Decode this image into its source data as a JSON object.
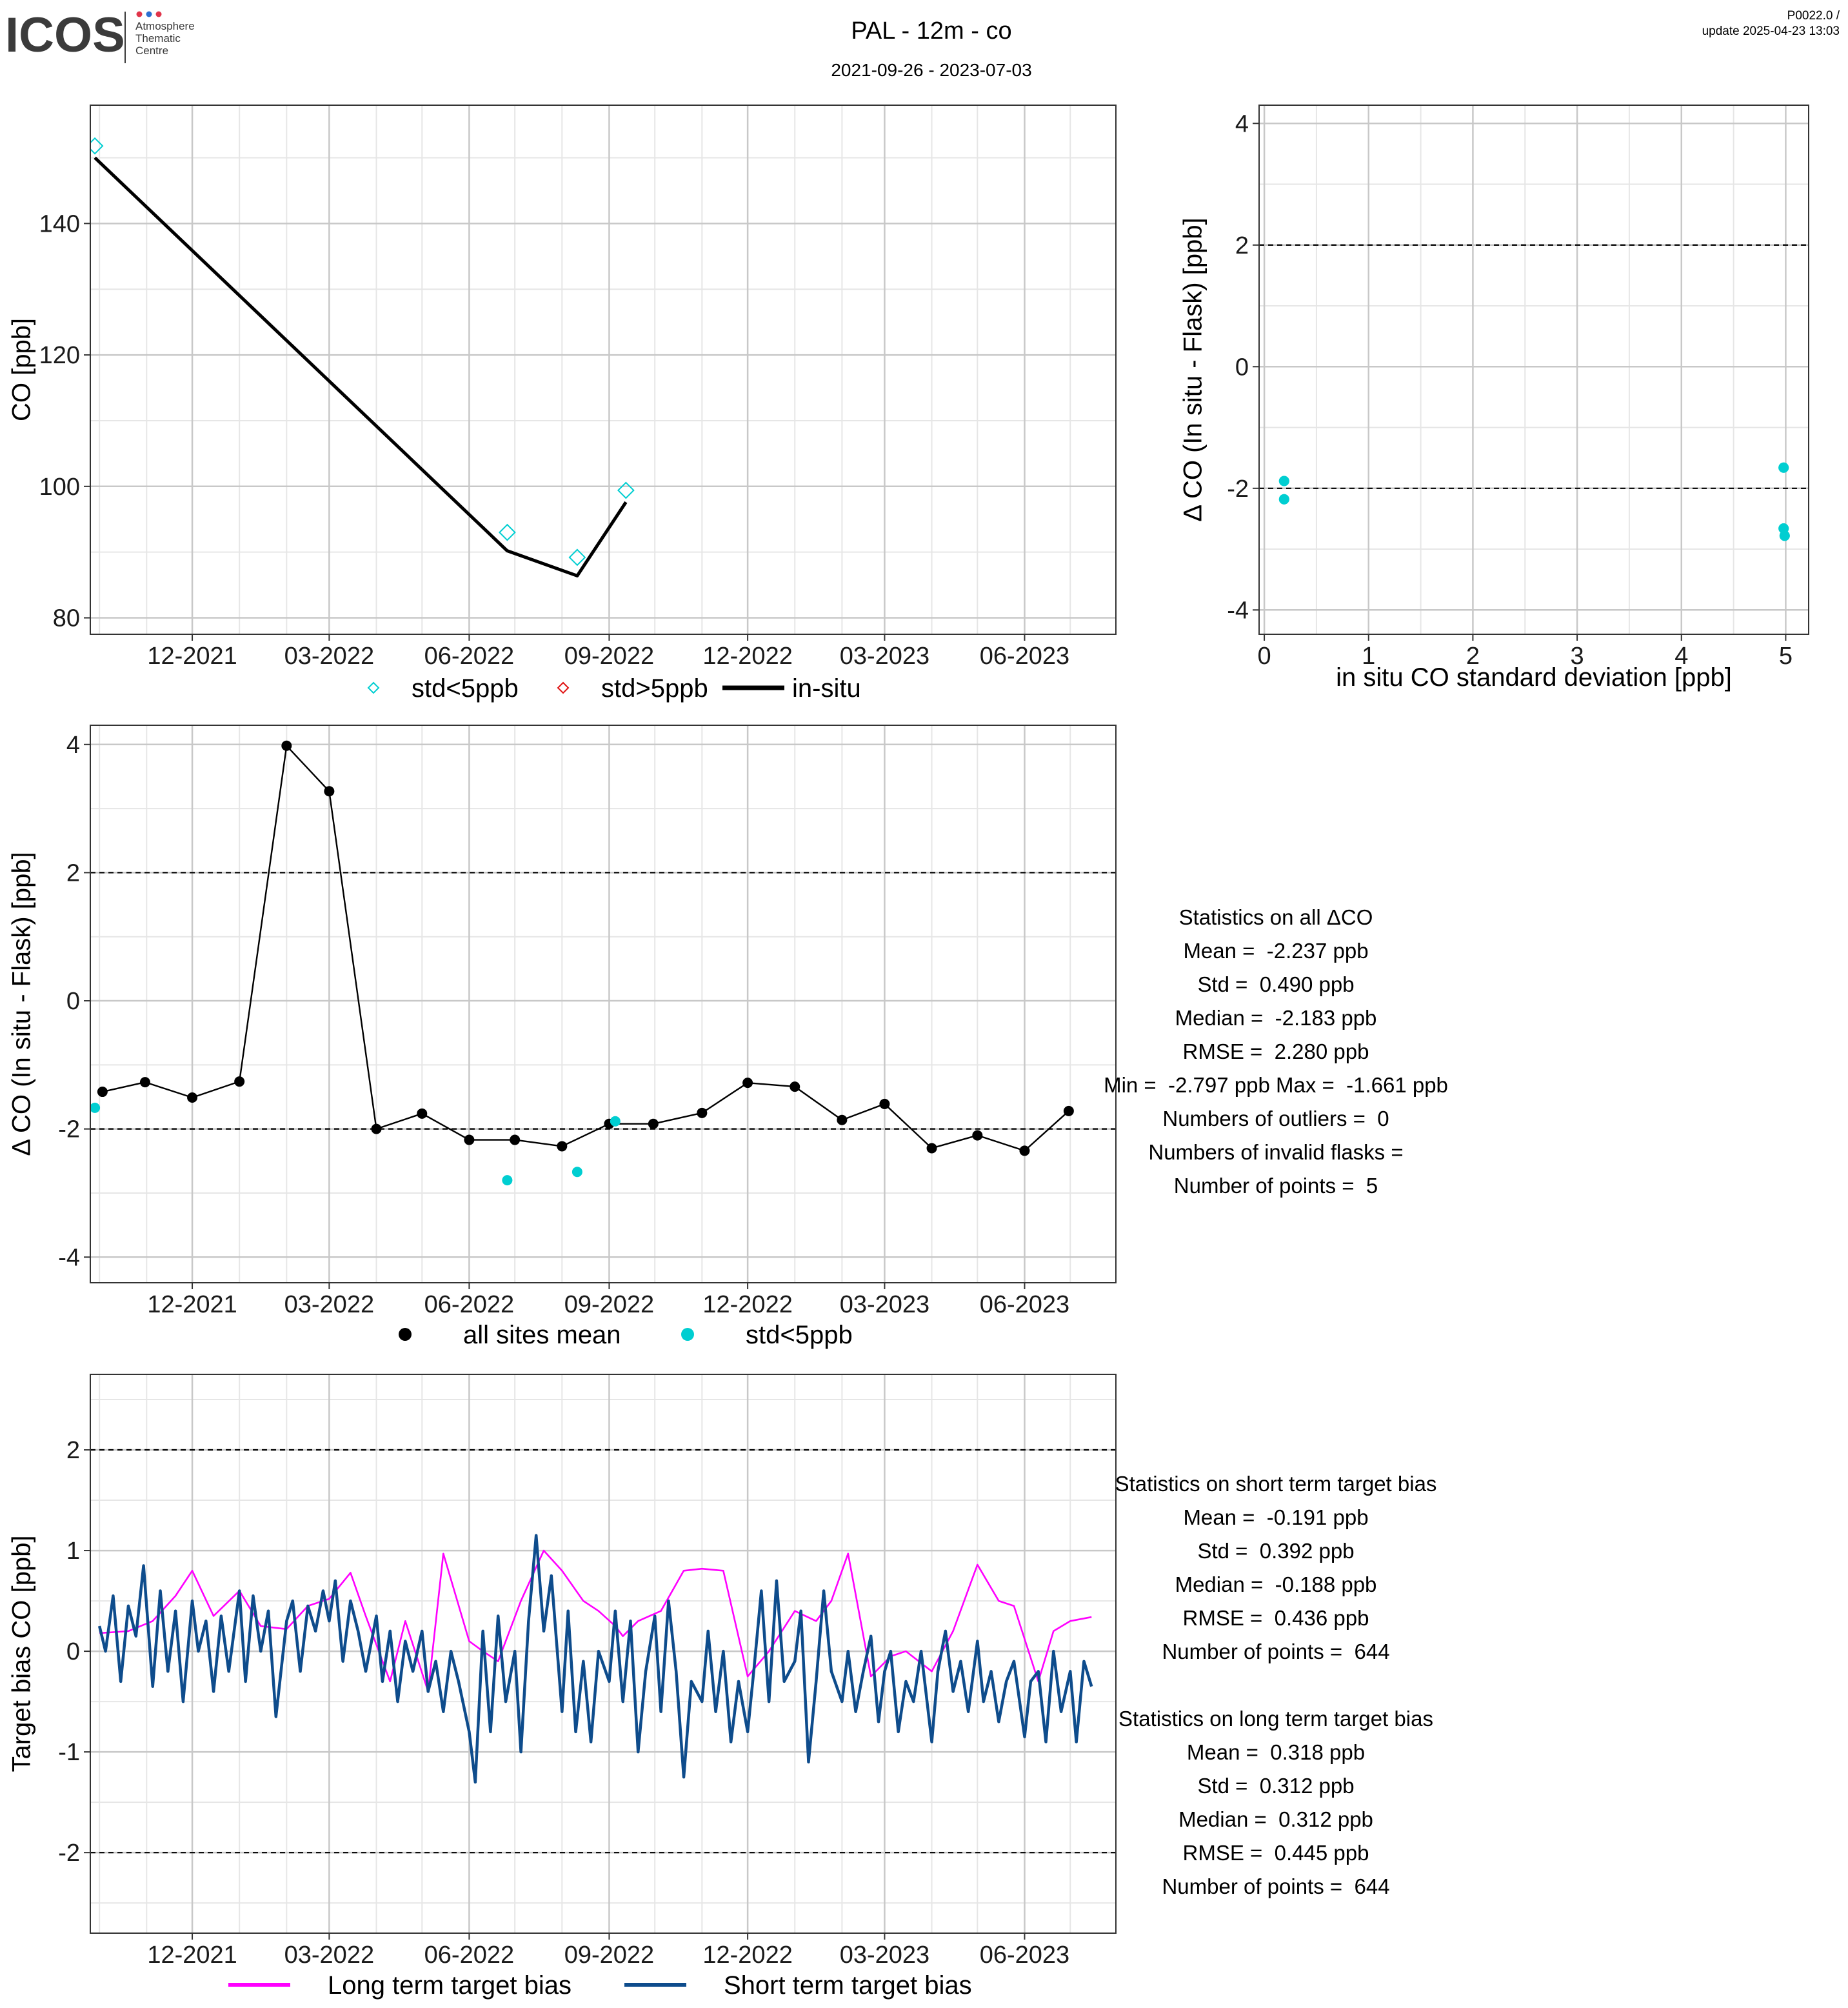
{
  "header": {
    "logo_text": "ICOS",
    "logo_subtext": [
      "Atmosphere",
      "Thematic",
      "Centre"
    ],
    "title": "PAL - 12m - co",
    "subtitle": "2021-09-26 - 2023-07-03",
    "version": "P0022.0 /",
    "update": "update  2025-04-23 13:03"
  },
  "colors": {
    "cyan": "#00CED1",
    "red": "#E01010",
    "black": "#000000",
    "magenta": "#FF00FF",
    "navy": "#0E4C8C",
    "grid": "#E6E6E6",
    "grid_major": "#C8C8C8"
  },
  "chart_data": [
    {
      "id": "co_timeseries",
      "type": "line",
      "xlabel": "",
      "ylabel": "CO [ppb]",
      "x_type": "date",
      "xlim": [
        "2021-09-25",
        "2023-07-31"
      ],
      "ylim": [
        77.5,
        158
      ],
      "yticks": [
        80,
        100,
        120,
        140
      ],
      "xticks": [
        "2021-12-01",
        "2022-03-01",
        "2022-06-01",
        "2022-09-01",
        "2022-12-01",
        "2023-03-01",
        "2023-06-01"
      ],
      "xtick_labels": [
        "12-2021",
        "03-2022",
        "06-2022",
        "09-2022",
        "12-2022",
        "03-2023",
        "06-2023"
      ],
      "grid": true,
      "legend_position": "bottom",
      "legend": [
        "std<5ppb",
        "std>5ppb",
        "in-situ"
      ],
      "series": [
        {
          "name": "std<5ppb",
          "kind": "diamond",
          "color": "#00CED1",
          "x": [
            "2021-09-28",
            "2022-06-26",
            "2022-08-11",
            "2022-09-12"
          ],
          "y": [
            151.8,
            93.0,
            89.2,
            99.4
          ]
        },
        {
          "name": "in-situ",
          "kind": "line",
          "color": "#000000",
          "x": [
            "2021-09-28",
            "2022-06-26",
            "2022-08-11",
            "2022-09-12"
          ],
          "y": [
            150.0,
            90.2,
            86.4,
            97.6
          ]
        }
      ]
    },
    {
      "id": "delta_vs_std",
      "type": "scatter",
      "xlabel": "in situ CO standard deviation [ppb]",
      "ylabel": "Δ CO (In situ - Flask) [ppb]",
      "xlim": [
        -0.05,
        5.22
      ],
      "ylim": [
        -4.4,
        4.3
      ],
      "xticks": [
        0,
        1,
        2,
        3,
        4,
        5
      ],
      "yticks": [
        -4,
        -2,
        0,
        2,
        4
      ],
      "hlines": [
        2,
        -2
      ],
      "grid": true,
      "series": [
        {
          "name": "",
          "color": "#00CED1",
          "x": [
            0.19,
            0.19,
            4.98,
            4.98,
            4.99
          ],
          "y": [
            -1.88,
            -2.18,
            -1.66,
            -2.66,
            -2.78
          ]
        }
      ]
    },
    {
      "id": "delta_timeseries",
      "type": "line",
      "xlabel": "",
      "ylabel": "Δ CO (In situ - Flask) [ppb]",
      "x_type": "date",
      "xlim": [
        "2021-09-25",
        "2023-07-31"
      ],
      "ylim": [
        -4.4,
        4.3
      ],
      "yticks": [
        -4,
        -2,
        0,
        2,
        4
      ],
      "xticks": [
        "2021-12-01",
        "2022-03-01",
        "2022-06-01",
        "2022-09-01",
        "2022-12-01",
        "2023-03-01",
        "2023-06-01"
      ],
      "xtick_labels": [
        "12-2021",
        "03-2022",
        "06-2022",
        "09-2022",
        "12-2022",
        "03-2023",
        "06-2023"
      ],
      "hlines": [
        2,
        -2
      ],
      "grid": true,
      "legend_position": "bottom",
      "legend": [
        "all sites mean",
        "std<5ppb"
      ],
      "series": [
        {
          "name": "all sites mean",
          "kind": "line_points",
          "color": "#000000",
          "x": [
            "2021-10-03",
            "2021-10-31",
            "2021-12-01",
            "2022-01-01",
            "2022-02-01",
            "2022-03-01",
            "2022-04-01",
            "2022-05-01",
            "2022-06-01",
            "2022-07-01",
            "2022-08-01",
            "2022-09-01",
            "2022-09-30",
            "2022-11-01",
            "2022-12-01",
            "2023-01-01",
            "2023-02-01",
            "2023-03-01",
            "2023-04-01",
            "2023-05-01",
            "2023-06-01",
            "2023-06-30"
          ],
          "y": [
            -1.42,
            -1.27,
            -1.51,
            -1.26,
            3.98,
            3.27,
            -2.0,
            -1.76,
            -2.17,
            -2.17,
            -2.27,
            -1.92,
            -1.92,
            -1.75,
            -1.28,
            -1.34,
            -1.86,
            -1.61,
            -2.3,
            -2.1,
            -2.34,
            -1.72
          ]
        },
        {
          "name": "std<5ppb",
          "kind": "points",
          "color": "#00CED1",
          "x": [
            "2021-09-28",
            "2022-06-26",
            "2022-08-11",
            "2022-09-05"
          ],
          "y": [
            -1.67,
            -2.8,
            -2.67,
            -1.88
          ]
        }
      ]
    },
    {
      "id": "target_bias",
      "type": "line",
      "xlabel": "",
      "ylabel": "Target bias CO [ppb]",
      "x_type": "date",
      "xlim": [
        "2021-09-25",
        "2023-07-31"
      ],
      "ylim": [
        -2.8,
        2.75
      ],
      "yticks": [
        -2,
        -1,
        0,
        1,
        2
      ],
      "xticks": [
        "2021-12-01",
        "2022-03-01",
        "2022-06-01",
        "2022-09-01",
        "2022-12-01",
        "2023-03-01",
        "2023-06-01"
      ],
      "xtick_labels": [
        "12-2021",
        "03-2022",
        "06-2022",
        "09-2022",
        "12-2022",
        "03-2023",
        "06-2023"
      ],
      "hlines": [
        2,
        -2
      ],
      "grid": true,
      "legend_position": "bottom",
      "legend": [
        "Long term target bias",
        "Short term target bias"
      ],
      "series": [
        {
          "name": "Long term target bias",
          "kind": "line",
          "color": "#FF00FF",
          "x": [
            "2021-10-01",
            "2021-10-20",
            "2021-11-05",
            "2021-11-20",
            "2021-12-01",
            "2021-12-15",
            "2022-01-01",
            "2022-01-15",
            "2022-02-01",
            "2022-02-15",
            "2022-03-01",
            "2022-03-15",
            "2022-03-25",
            "2022-04-10",
            "2022-04-20",
            "2022-05-05",
            "2022-05-15",
            "2022-06-01",
            "2022-06-10",
            "2022-06-20",
            "2022-07-05",
            "2022-07-20",
            "2022-08-01",
            "2022-08-15",
            "2022-08-25",
            "2022-09-05",
            "2022-09-10",
            "2022-09-20",
            "2022-10-05",
            "2022-10-20",
            "2022-11-01",
            "2022-11-15",
            "2022-12-01",
            "2022-12-15",
            "2023-01-01",
            "2023-01-15",
            "2023-01-25",
            "2023-02-05",
            "2023-02-20",
            "2023-03-05",
            "2023-03-15",
            "2023-04-01",
            "2023-04-15",
            "2023-05-01",
            "2023-05-15",
            "2023-05-25",
            "2023-06-10",
            "2023-06-20",
            "2023-07-01",
            "2023-07-15"
          ],
          "y": [
            0.18,
            0.2,
            0.3,
            0.55,
            0.8,
            0.35,
            0.6,
            0.25,
            0.22,
            0.45,
            0.52,
            0.78,
            0.35,
            -0.3,
            0.3,
            -0.4,
            0.97,
            0.1,
            0.0,
            -0.1,
            0.5,
            1.0,
            0.8,
            0.5,
            0.4,
            0.25,
            0.15,
            0.3,
            0.4,
            0.8,
            0.82,
            0.8,
            -0.25,
            0.0,
            0.4,
            0.3,
            0.5,
            0.97,
            -0.25,
            -0.05,
            0.0,
            -0.2,
            0.2,
            0.86,
            0.5,
            0.45,
            -0.3,
            0.2,
            0.3,
            0.34
          ]
        },
        {
          "name": "Short term target bias",
          "kind": "line",
          "color": "#0E4C8C",
          "x": [
            "2021-10-01",
            "2021-10-05",
            "2021-10-10",
            "2021-10-15",
            "2021-10-20",
            "2021-10-25",
            "2021-10-30",
            "2021-11-05",
            "2021-11-10",
            "2021-11-15",
            "2021-11-20",
            "2021-11-25",
            "2021-12-01",
            "2021-12-05",
            "2021-12-10",
            "2021-12-15",
            "2021-12-20",
            "2021-12-25",
            "2022-01-01",
            "2022-01-05",
            "2022-01-10",
            "2022-01-15",
            "2022-01-20",
            "2022-01-25",
            "2022-02-01",
            "2022-02-05",
            "2022-02-10",
            "2022-02-15",
            "2022-02-20",
            "2022-02-25",
            "2022-03-01",
            "2022-03-05",
            "2022-03-10",
            "2022-03-15",
            "2022-03-20",
            "2022-03-25",
            "2022-04-01",
            "2022-04-05",
            "2022-04-10",
            "2022-04-15",
            "2022-04-20",
            "2022-04-25",
            "2022-05-01",
            "2022-05-05",
            "2022-05-10",
            "2022-05-15",
            "2022-05-20",
            "2022-05-25",
            "2022-06-01",
            "2022-06-05",
            "2022-06-10",
            "2022-06-15",
            "2022-06-20",
            "2022-06-25",
            "2022-07-01",
            "2022-07-05",
            "2022-07-10",
            "2022-07-15",
            "2022-07-20",
            "2022-07-25",
            "2022-08-01",
            "2022-08-05",
            "2022-08-10",
            "2022-08-15",
            "2022-08-20",
            "2022-08-25",
            "2022-09-01",
            "2022-09-05",
            "2022-09-10",
            "2022-09-15",
            "2022-09-20",
            "2022-09-25",
            "2022-10-01",
            "2022-10-05",
            "2022-10-10",
            "2022-10-15",
            "2022-10-20",
            "2022-10-25",
            "2022-11-01",
            "2022-11-05",
            "2022-11-10",
            "2022-11-15",
            "2022-11-20",
            "2022-11-25",
            "2022-12-01",
            "2022-12-05",
            "2022-12-10",
            "2022-12-15",
            "2022-12-20",
            "2022-12-25",
            "2023-01-01",
            "2023-01-05",
            "2023-01-10",
            "2023-01-15",
            "2023-01-20",
            "2023-01-25",
            "2023-02-01",
            "2023-02-05",
            "2023-02-10",
            "2023-02-15",
            "2023-02-20",
            "2023-02-25",
            "2023-03-01",
            "2023-03-05",
            "2023-03-10",
            "2023-03-15",
            "2023-03-20",
            "2023-03-25",
            "2023-04-01",
            "2023-04-05",
            "2023-04-10",
            "2023-04-15",
            "2023-04-20",
            "2023-04-25",
            "2023-05-01",
            "2023-05-05",
            "2023-05-10",
            "2023-05-15",
            "2023-05-20",
            "2023-05-25",
            "2023-06-01",
            "2023-06-05",
            "2023-06-10",
            "2023-06-15",
            "2023-06-20",
            "2023-06-25",
            "2023-07-01",
            "2023-07-05",
            "2023-07-10",
            "2023-07-15"
          ],
          "y": [
            0.25,
            0.0,
            0.55,
            -0.3,
            0.45,
            0.15,
            0.85,
            -0.35,
            0.6,
            -0.2,
            0.4,
            -0.5,
            0.5,
            0.0,
            0.3,
            -0.4,
            0.35,
            -0.2,
            0.6,
            -0.3,
            0.55,
            0.0,
            0.4,
            -0.65,
            0.3,
            0.5,
            -0.2,
            0.45,
            0.2,
            0.6,
            0.3,
            0.7,
            -0.1,
            0.5,
            0.2,
            -0.2,
            0.35,
            -0.3,
            0.2,
            -0.5,
            0.1,
            -0.2,
            0.2,
            -0.4,
            -0.1,
            -0.6,
            0.0,
            -0.3,
            -0.8,
            -1.3,
            0.2,
            -0.8,
            0.35,
            -0.5,
            0.0,
            -1.0,
            0.3,
            1.15,
            0.2,
            0.75,
            -0.6,
            0.4,
            -0.8,
            -0.1,
            -0.9,
            0.0,
            -0.3,
            0.4,
            -0.5,
            0.3,
            -1.0,
            -0.2,
            0.35,
            -0.6,
            0.5,
            -0.2,
            -1.25,
            -0.3,
            -0.5,
            0.2,
            -0.6,
            0.0,
            -0.9,
            -0.3,
            -0.8,
            -0.2,
            0.6,
            -0.5,
            0.7,
            -0.3,
            -0.1,
            0.4,
            -1.1,
            -0.3,
            0.6,
            -0.2,
            -0.5,
            0.0,
            -0.6,
            -0.2,
            0.15,
            -0.7,
            -0.2,
            0.0,
            -0.8,
            -0.3,
            -0.5,
            0.0,
            -0.9,
            -0.2,
            0.2,
            -0.4,
            -0.1,
            -0.6,
            0.1,
            -0.5,
            -0.2,
            -0.7,
            -0.3,
            -0.1,
            -0.85,
            -0.3,
            -0.2,
            -0.9,
            0.0,
            -0.6,
            -0.2,
            -0.9,
            -0.1,
            -0.35
          ]
        }
      ]
    }
  ],
  "stats_delta": {
    "lines": [
      "Statistics on all ΔCO",
      "Mean =  -2.237 ppb",
      "Std =  0.490 ppb",
      "Median =  -2.183 ppb",
      "RMSE =  2.280 ppb",
      "Min =  -2.797 ppb Max =  -1.661 ppb",
      "Numbers of outliers =  0",
      "Numbers of invalid flasks =",
      "Number of points =  5"
    ]
  },
  "stats_target": {
    "short_lines": [
      "Statistics on short term target bias",
      "Mean =  -0.191 ppb",
      "Std =  0.392 ppb",
      "Median =  -0.188 ppb",
      "RMSE =  0.436 ppb",
      "Number of points =  644"
    ],
    "long_lines": [
      "Statistics on long term target bias",
      "Mean =  0.318 ppb",
      "Std =  0.312 ppb",
      "Median =  0.312 ppb",
      "RMSE =  0.445 ppb",
      "Number of points =  644"
    ]
  }
}
